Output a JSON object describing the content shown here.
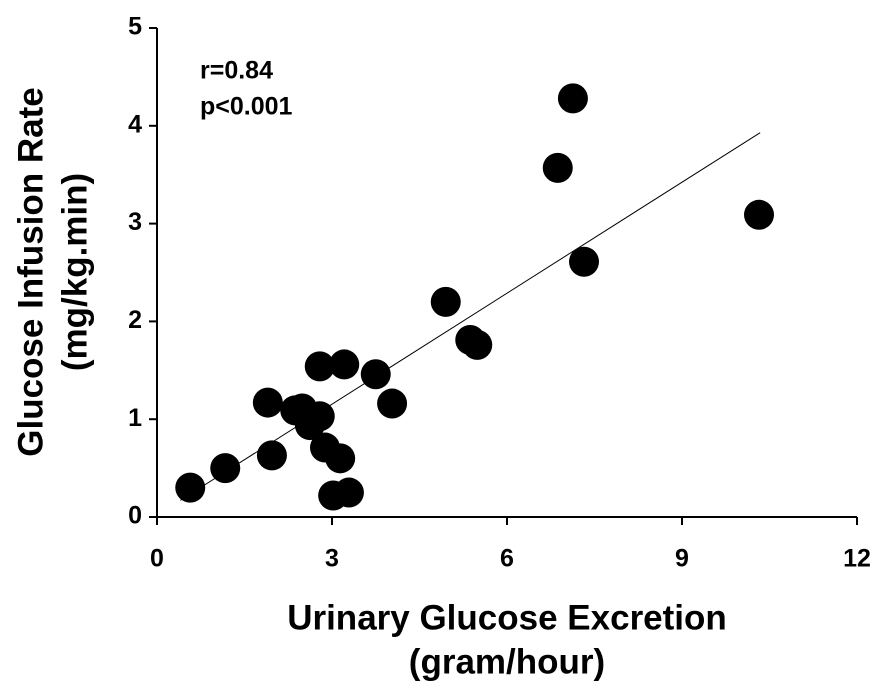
{
  "chart_data": {
    "type": "scatter",
    "xlabel": [
      "Urinary Glucose Excretion",
      "(gram/hour)"
    ],
    "ylabel": [
      "Glucose Infusion Rate",
      "(mg/kg.min)"
    ],
    "annotations": [
      "r=0.84",
      "p<0.001"
    ],
    "x": [
      0.57,
      1.17,
      1.97,
      1.9,
      2.37,
      2.49,
      2.62,
      2.79,
      2.79,
      3.21,
      2.88,
      3.14,
      3.02,
      3.29,
      3.75,
      4.03,
      4.95,
      5.37,
      5.49,
      6.87,
      7.13,
      7.32,
      10.32
    ],
    "values": [
      0.3,
      0.5,
      0.63,
      1.17,
      1.09,
      1.11,
      0.94,
      1.03,
      1.54,
      1.56,
      0.71,
      0.6,
      0.22,
      0.25,
      1.46,
      1.16,
      2.2,
      1.81,
      1.76,
      3.57,
      4.28,
      2.61,
      3.09
    ],
    "color": "#000000",
    "fit_line": {
      "x": [
        0.4,
        10.34
      ],
      "y": [
        0.17,
        3.93
      ]
    },
    "xlim": [
      0,
      12
    ],
    "xticks": [
      0,
      3,
      6,
      9,
      12
    ],
    "ylim": [
      0,
      5
    ],
    "yticks": [
      0,
      1,
      2,
      3,
      4,
      5
    ],
    "grid": false
  }
}
